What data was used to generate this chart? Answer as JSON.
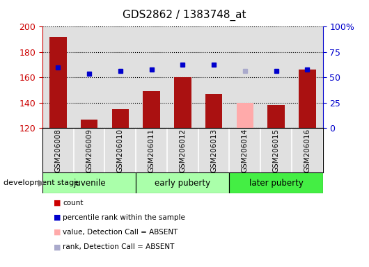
{
  "title": "GDS2862 / 1383748_at",
  "samples": [
    "GSM206008",
    "GSM206009",
    "GSM206010",
    "GSM206011",
    "GSM206012",
    "GSM206013",
    "GSM206014",
    "GSM206015",
    "GSM206016"
  ],
  "bar_values": [
    192,
    127,
    135,
    149,
    160,
    147,
    140,
    138,
    166
  ],
  "bar_colors": [
    "#aa1111",
    "#aa1111",
    "#aa1111",
    "#aa1111",
    "#aa1111",
    "#aa1111",
    "#ffaaaa",
    "#aa1111",
    "#aa1111"
  ],
  "rank_values": [
    168,
    163,
    165,
    166,
    170,
    170,
    165,
    165,
    166
  ],
  "rank_colors": [
    "#0000cc",
    "#0000cc",
    "#0000cc",
    "#0000cc",
    "#0000cc",
    "#0000cc",
    "#aaaacc",
    "#0000cc",
    "#0000cc"
  ],
  "ylim_left": [
    120,
    200
  ],
  "ylim_right": [
    0,
    100
  ],
  "yticks_left": [
    120,
    140,
    160,
    180,
    200
  ],
  "yticks_right": [
    0,
    25,
    50,
    75,
    100
  ],
  "ytick_labels_right": [
    "0",
    "25",
    "50",
    "75",
    "100%"
  ],
  "group_defs": [
    {
      "start": 0,
      "end": 2,
      "label": "juvenile",
      "color": "#aaffaa"
    },
    {
      "start": 3,
      "end": 5,
      "label": "early puberty",
      "color": "#aaffaa"
    },
    {
      "start": 6,
      "end": 8,
      "label": "later puberty",
      "color": "#44ee44"
    }
  ],
  "legend_items": [
    {
      "label": "count",
      "color": "#cc0000"
    },
    {
      "label": "percentile rank within the sample",
      "color": "#0000cc"
    },
    {
      "label": "value, Detection Call = ABSENT",
      "color": "#ffaaaa"
    },
    {
      "label": "rank, Detection Call = ABSENT",
      "color": "#aaaacc"
    }
  ],
  "plot_bg_color": "#e0e0e0",
  "grid_color": "#000000",
  "title_fontsize": 11,
  "tick_fontsize": 9,
  "left_tick_color": "#cc0000",
  "right_tick_color": "#0000cc"
}
